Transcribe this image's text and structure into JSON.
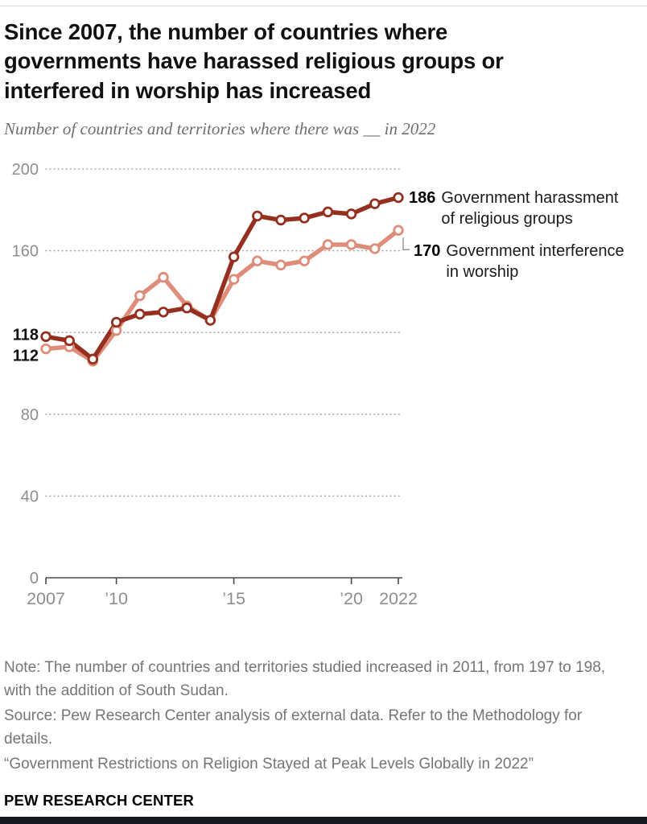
{
  "header": {
    "title": "Since 2007, the number of countries where governments have harassed religious groups or interfered in worship has increased",
    "subtitle": "Number of countries and territories where there was __ in 2022"
  },
  "chart_data": {
    "type": "line",
    "x": [
      2007,
      2008,
      2009,
      2010,
      2011,
      2012,
      2013,
      2014,
      2015,
      2016,
      2017,
      2018,
      2019,
      2020,
      2021,
      2022
    ],
    "series": [
      {
        "name": "Government harassment of religious groups",
        "color": "#953021",
        "values": [
          118,
          116,
          107,
          125,
          129,
          130,
          132,
          126,
          157,
          177,
          175,
          176,
          179,
          178,
          183,
          186
        ],
        "start_label": "118",
        "end_label": "186"
      },
      {
        "name": "Government interference in worship",
        "color": "#de8d7a",
        "values": [
          112,
          113,
          106,
          121,
          138,
          147,
          133,
          126,
          146,
          155,
          153,
          155,
          163,
          163,
          161,
          170
        ],
        "start_label": "112",
        "end_label": "170"
      }
    ],
    "ylim": [
      0,
      200
    ],
    "gridlines": [
      40,
      80,
      120,
      160,
      200
    ],
    "ytick_labels": [
      {
        "value": 200,
        "label": "200"
      },
      {
        "value": 160,
        "label": "160"
      },
      {
        "value": 80,
        "label": "80"
      },
      {
        "value": 40,
        "label": "40"
      },
      {
        "value": 0,
        "label": "0"
      }
    ],
    "xticks": [
      {
        "year": 2007,
        "label": "2007"
      },
      {
        "year": 2010,
        "label": "’10"
      },
      {
        "year": 2015,
        "label": "’15"
      },
      {
        "year": 2020,
        "label": "’20"
      },
      {
        "year": 2022,
        "label": "2022"
      }
    ],
    "grid": "dotted horizontal gridlines",
    "legend_position": "labels at right of line ends",
    "marker": "open circle"
  },
  "notes": {
    "note": "Note: The number of countries and territories studied increased in 2011, from 197 to 198, with the addition of South Sudan.",
    "source": "Source: Pew Research Center analysis of external data. Refer to the Methodology for details.",
    "report": "“Government Restrictions on Religion Stayed at Peak Levels Globally in 2022”",
    "brand": "PEW RESEARCH CENTER"
  },
  "colors": {
    "harassment_line": "#953021",
    "interference_line": "#de8d7a",
    "gridline": "#9e9e9e",
    "axis": "#4a4a4a",
    "axis_label": "#8e8e8e",
    "note_text": "#757575"
  }
}
